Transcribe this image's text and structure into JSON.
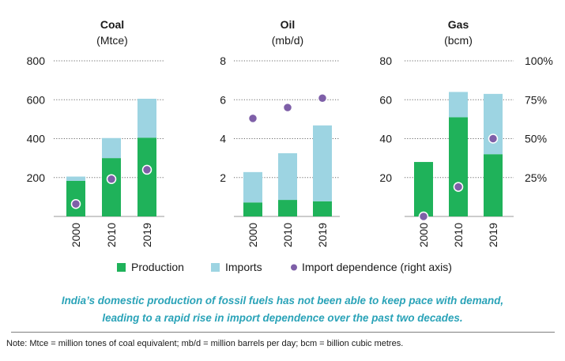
{
  "chart_data": {
    "type": "bar",
    "stacked": true,
    "legend": [
      {
        "label": "Production",
        "color": "#1fb25a",
        "marker": "square"
      },
      {
        "label": "Imports",
        "color": "#9dd4e2",
        "marker": "square"
      },
      {
        "label": "Import dependence (right axis)",
        "color": "#7e5fa8",
        "marker": "circle"
      }
    ],
    "panels": [
      {
        "title": "Coal",
        "unit": "(Mtce)",
        "categories": [
          "2000",
          "2010",
          "2019"
        ],
        "series": [
          {
            "name": "Production",
            "values": [
              183,
              300,
              405
            ]
          },
          {
            "name": "Imports",
            "values": [
              22,
              103,
              200
            ]
          }
        ],
        "import_dependence_pct": [
          8,
          24,
          30
        ],
        "ylim": [
          0,
          800
        ],
        "yticks": [
          200,
          400,
          600,
          800
        ],
        "ytick_labels": [
          "200",
          "400",
          "600",
          "800"
        ]
      },
      {
        "title": "Oil",
        "unit": "(mb/d)",
        "categories": [
          "2000",
          "2010",
          "2019"
        ],
        "series": [
          {
            "name": "Production",
            "values": [
              0.72,
              0.85,
              0.78
            ]
          },
          {
            "name": "Imports",
            "values": [
              1.56,
              2.4,
              3.9
            ]
          }
        ],
        "import_dependence_pct": [
          63,
          70,
          76
        ],
        "ylim": [
          0,
          8
        ],
        "yticks": [
          2,
          4,
          6,
          8
        ],
        "ytick_labels": [
          "2",
          "4",
          "6",
          "8"
        ]
      },
      {
        "title": "Gas",
        "unit": "(bcm)",
        "categories": [
          "2000",
          "2010",
          "2019"
        ],
        "series": [
          {
            "name": "Production",
            "values": [
              28,
              51,
              32
            ]
          },
          {
            "name": "Imports",
            "values": [
              0,
              13,
              31
            ]
          }
        ],
        "import_dependence_pct": [
          0,
          19,
          50
        ],
        "ylim": [
          0,
          80
        ],
        "yticks": [
          20,
          40,
          60,
          80
        ],
        "ytick_labels": [
          "20",
          "40",
          "60",
          "80"
        ],
        "y2lim": [
          0,
          100
        ],
        "y2ticks": [
          25,
          50,
          75,
          100
        ],
        "y2tick_labels": [
          "25%",
          "50%",
          "75%",
          "100%"
        ]
      }
    ]
  },
  "caption": {
    "line1": "India’s domestic production of fossil fuels has not been able to keep pace with demand,",
    "line2": "leading to a rapid rise in import dependence over the past two decades."
  },
  "note": "Note: Mtce = million tones of coal equivalent; mb/d = million barrels per day; bcm = billion cubic metres."
}
